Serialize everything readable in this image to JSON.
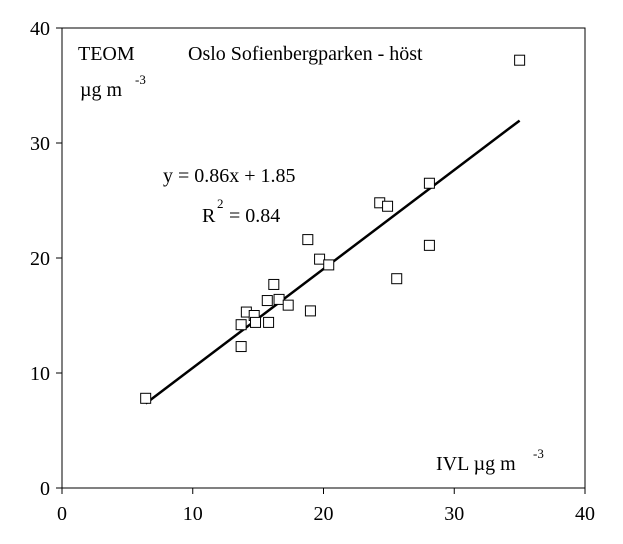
{
  "chart_data": {
    "type": "scatter",
    "title": "Oslo Sofienbergparken - höst",
    "y_label": {
      "main": "TEOM",
      "unit": "µg m",
      "unit_exp": "-3"
    },
    "x_label": {
      "main": "IVL µg m",
      "exp": "-3"
    },
    "equation": "y = 0.86x + 1.85",
    "r2": {
      "main": "R",
      "exp": "2",
      "rest": " = 0.84"
    },
    "x": [
      6.4,
      13.7,
      13.7,
      14.1,
      14.7,
      14.8,
      15.8,
      15.7,
      16.2,
      16.6,
      17.3,
      19.0,
      18.8,
      19.7,
      20.4,
      24.3,
      24.9,
      25.6,
      28.1,
      28.1,
      35.0
    ],
    "values": [
      7.8,
      12.3,
      14.2,
      15.3,
      15.0,
      14.4,
      14.4,
      16.3,
      17.7,
      16.4,
      15.9,
      15.4,
      21.6,
      19.9,
      19.4,
      24.8,
      24.5,
      18.2,
      26.5,
      21.1,
      37.2
    ],
    "trendline": {
      "x": [
        6.4,
        35.0
      ],
      "values": [
        7.35,
        31.95
      ]
    },
    "xlim": [
      0,
      40
    ],
    "ylim": [
      0,
      40
    ],
    "xticks": [
      0,
      10,
      20,
      30,
      40
    ],
    "yticks": [
      0,
      10,
      20,
      30,
      40
    ]
  }
}
